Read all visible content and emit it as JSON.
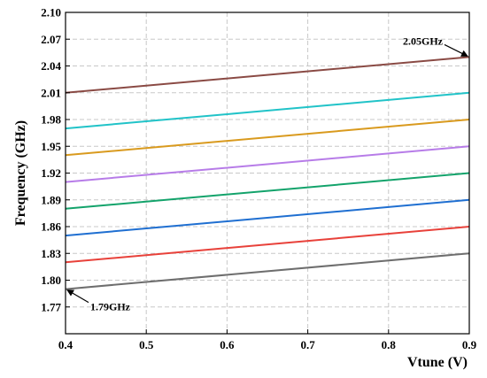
{
  "chart_data": {
    "type": "line",
    "title": "",
    "xlabel": "Vtune (V)",
    "ylabel": "Frequency (GHz)",
    "xlim": [
      0.4,
      0.9
    ],
    "ylim": [
      1.74,
      2.1
    ],
    "x_ticks": [
      "0.4",
      "0.5",
      "0.6",
      "0.7",
      "0.8",
      "0.9"
    ],
    "y_ticks": [
      "1.77",
      "1.80",
      "1.83",
      "1.86",
      "1.89",
      "1.92",
      "1.95",
      "1.98",
      "2.01",
      "2.04",
      "2.07",
      "2.10"
    ],
    "grid": true,
    "series": [
      {
        "color": "#6e6e6e",
        "x": [
          0.4,
          0.9
        ],
        "y": [
          1.79,
          1.83
        ]
      },
      {
        "color": "#e8413a",
        "x": [
          0.4,
          0.9
        ],
        "y": [
          1.82,
          1.86
        ]
      },
      {
        "color": "#1f6fd1",
        "x": [
          0.4,
          0.9
        ],
        "y": [
          1.85,
          1.89
        ]
      },
      {
        "color": "#13a36b",
        "x": [
          0.4,
          0.9
        ],
        "y": [
          1.88,
          1.92
        ]
      },
      {
        "color": "#b77ce8",
        "x": [
          0.4,
          0.9
        ],
        "y": [
          1.91,
          1.95
        ]
      },
      {
        "color": "#d99a1e",
        "x": [
          0.4,
          0.9
        ],
        "y": [
          1.94,
          1.98
        ]
      },
      {
        "color": "#21c3c8",
        "x": [
          0.4,
          0.9
        ],
        "y": [
          1.97,
          2.01
        ]
      },
      {
        "color": "#8a4a44",
        "x": [
          0.4,
          0.9
        ],
        "y": [
          2.01,
          2.05
        ]
      }
    ],
    "annotations": [
      {
        "text": "2.05GHz",
        "x": 0.9,
        "y": 2.05
      },
      {
        "text": "1.79GHz",
        "x": 0.4,
        "y": 1.79
      }
    ]
  }
}
